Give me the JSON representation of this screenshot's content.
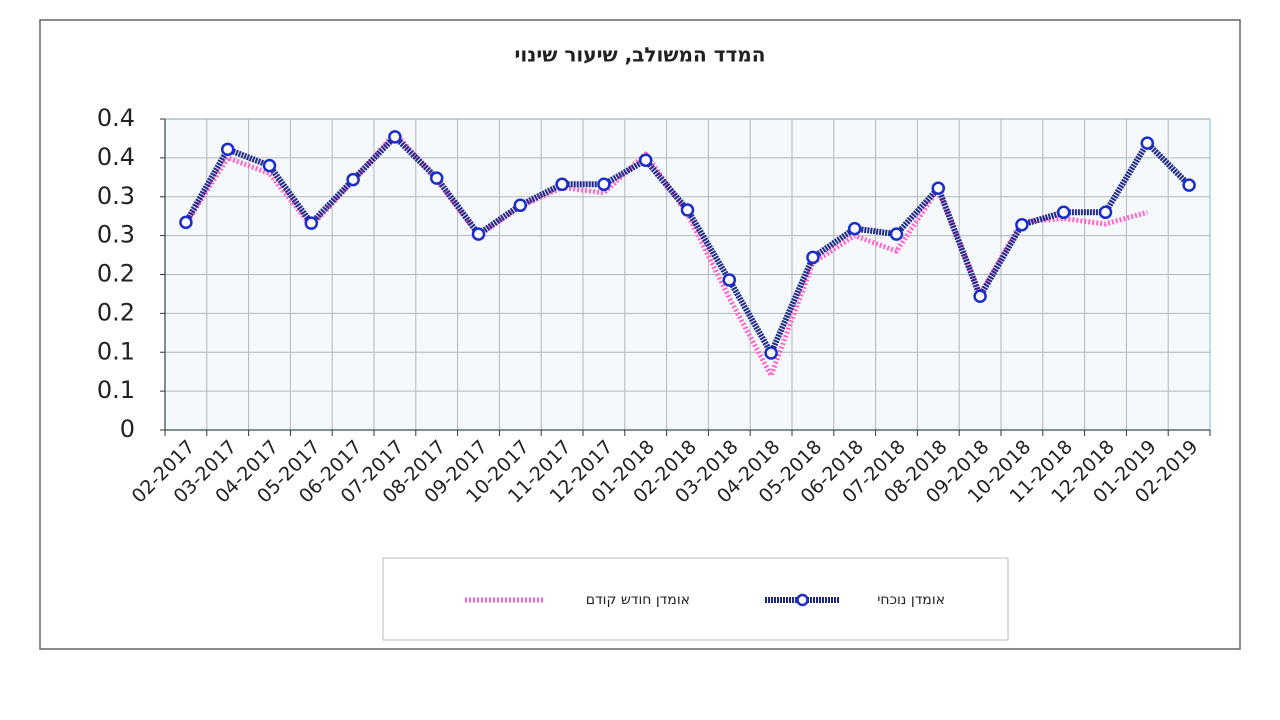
{
  "chart_data": {
    "type": "line",
    "title": "המדד המשולב, שיעור שינוי",
    "categories": [
      "02-2017",
      "03-2017",
      "04-2017",
      "05-2017",
      "06-2017",
      "07-2017",
      "08-2017",
      "09-2017",
      "10-2017",
      "11-2017",
      "12-2017",
      "01-2018",
      "02-2018",
      "03-2018",
      "04-2018",
      "05-2018",
      "06-2018",
      "07-2018",
      "08-2018",
      "09-2018",
      "10-2018",
      "11-2018",
      "12-2018",
      "01-2019",
      "02-2019"
    ],
    "series": [
      {
        "name": "אומדן נוכחי",
        "color": "#1f2a8a",
        "values": [
          0.267,
          0.361,
          0.34,
          0.266,
          0.322,
          0.377,
          0.324,
          0.252,
          0.289,
          0.316,
          0.316,
          0.347,
          0.283,
          0.193,
          0.099,
          0.222,
          0.259,
          0.252,
          0.311,
          0.172,
          0.264,
          0.28,
          0.28,
          0.369,
          0.315
        ]
      },
      {
        "name": "אומדן חודש קודם",
        "color": "#ff66cc",
        "values": [
          0.265,
          0.35,
          0.33,
          0.262,
          0.32,
          0.382,
          0.322,
          0.25,
          0.287,
          0.312,
          0.305,
          0.355,
          0.278,
          0.17,
          0.07,
          0.215,
          0.25,
          0.23,
          0.31,
          0.175,
          0.268,
          0.272,
          0.265,
          0.28,
          null
        ]
      }
    ],
    "ylim": [
      0,
      0.4
    ],
    "yticks": [
      0,
      {
        "value": 0.05,
        "label": "0.1"
      },
      0.1,
      {
        "value": 0.15,
        "label": "0.2"
      },
      0.2,
      {
        "value": 0.25,
        "label": "0.3"
      },
      0.3,
      {
        "value": 0.35,
        "label": "0.4"
      },
      0.4
    ],
    "grid": true
  }
}
